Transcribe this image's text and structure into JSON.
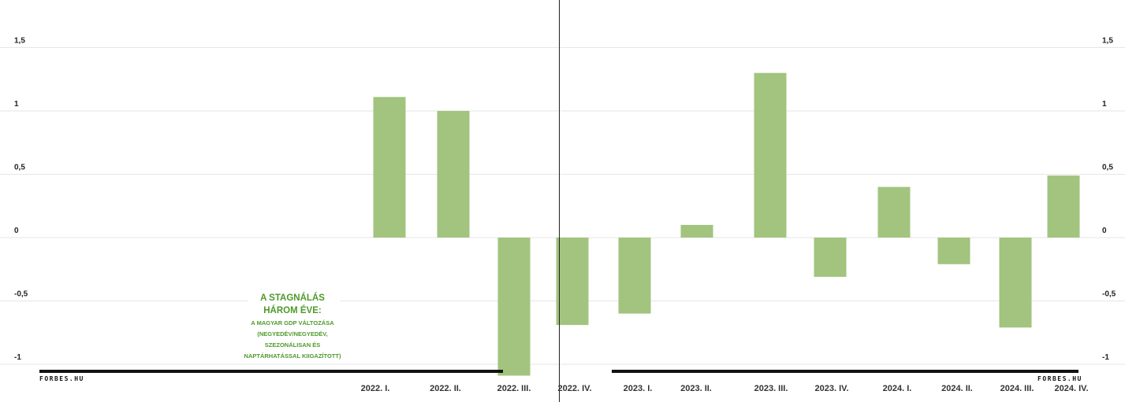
{
  "chart_data": {
    "type": "bar",
    "categories": [
      "2022. I.",
      "2022. II.",
      "2022. III.",
      "2022. IV.",
      "2023. I.",
      "2023. II.",
      "2023. III.",
      "2023. IV.",
      "2024. I.",
      "2024. II.",
      "2024. III.",
      "2024. IV."
    ],
    "values": [
      1.11,
      1.0,
      -1.09,
      -0.69,
      -0.6,
      0.1,
      1.3,
      -0.31,
      0.4,
      -0.21,
      -0.71,
      0.49
    ],
    "ylim": [
      -1,
      1.5
    ],
    "yticks": [
      "1,5",
      "1",
      "0,5",
      "0",
      "-0,5",
      "-1"
    ],
    "ytick_values": [
      1.5,
      1,
      0.5,
      0,
      -0.5,
      -1
    ],
    "grid": true,
    "bar_color": "#a2c47e",
    "annotation": {
      "title_lines": [
        "A STAGNÁLÁS",
        "HÁROM ÉVE:"
      ],
      "sub_lines": [
        "A MAGYAR GDP VÁLTOZÁSA",
        "(NEGYEDÉV/NEGYEDÉV,",
        "SZEZONÁLISAN ÉS",
        "NAPTÁRHATÁSSAL KIIGAZÍTOTT)"
      ],
      "color": "#4e9a2a"
    },
    "credits": [
      "FORBES.HU",
      "FORBES.HU"
    ]
  }
}
